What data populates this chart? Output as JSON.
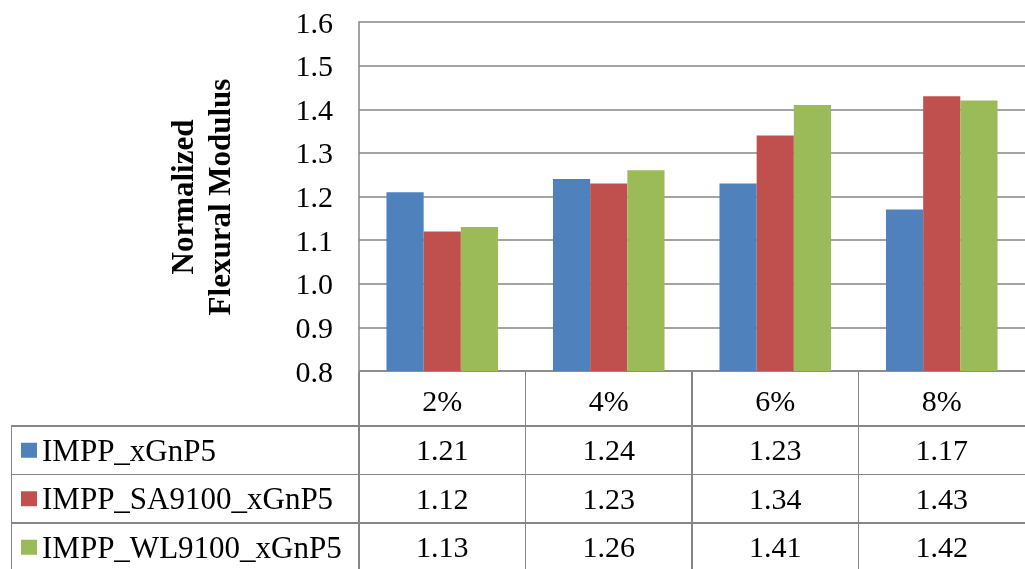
{
  "chart_data": {
    "type": "bar",
    "ylabel": "Normalized Flexural Modulus",
    "categories": [
      "2%",
      "4%",
      "6%",
      "8%"
    ],
    "series": [
      {
        "name": "IMPP_xGnP5",
        "color": "#4f81bd",
        "values": [
          1.21,
          1.24,
          1.23,
          1.17
        ]
      },
      {
        "name": "IMPP_SA9100_xGnP5",
        "color": "#c0504d",
        "values": [
          1.12,
          1.23,
          1.34,
          1.43
        ]
      },
      {
        "name": "IMPP_WL9100_xGnP5",
        "color": "#9bbb59",
        "values": [
          1.13,
          1.26,
          1.41,
          1.42
        ]
      }
    ],
    "ylim": [
      0.8,
      1.6
    ],
    "yticks": [
      0.8,
      0.9,
      {
        "value": 1,
        "label": "1.0"
      },
      1.1,
      1.2,
      1.3,
      1.4,
      1.5,
      1.6
    ],
    "grid": "y",
    "legend": "bottom left",
    "data_labels": true
  }
}
